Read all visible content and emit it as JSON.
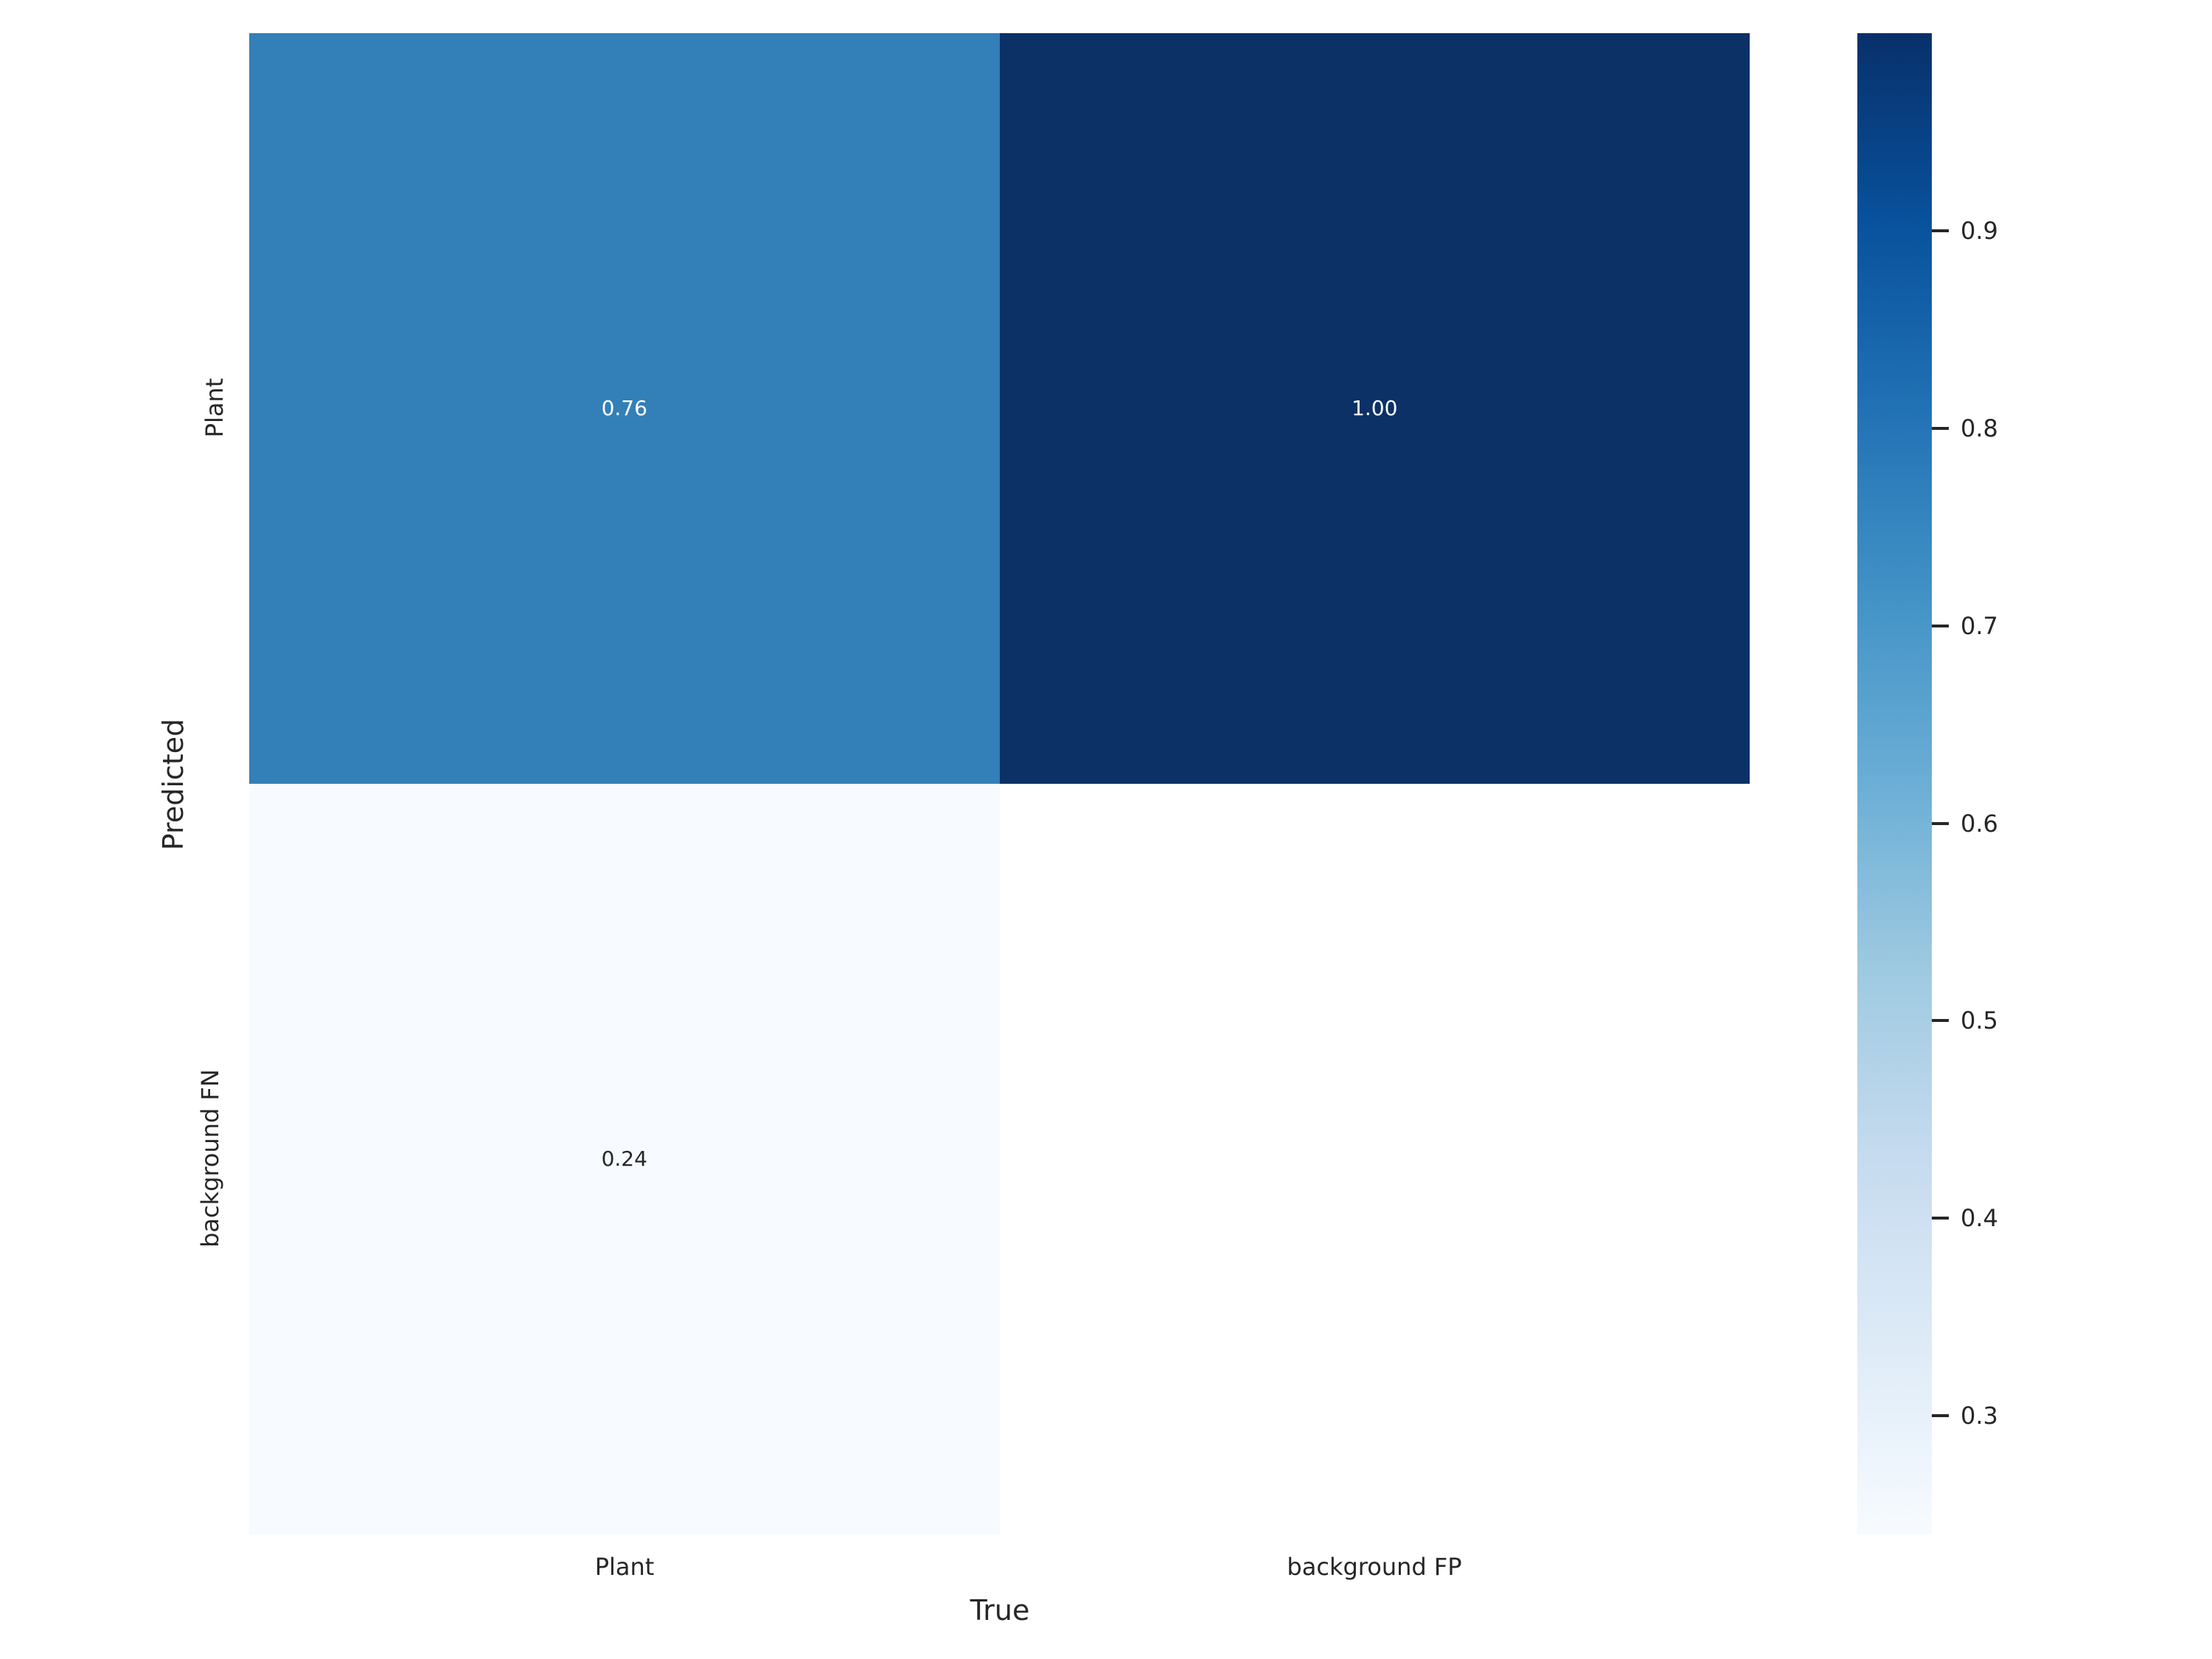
{
  "figure": {
    "background_color": "#ffffff",
    "text_color": "#262626"
  },
  "chart_data": {
    "type": "heatmap",
    "title": "",
    "xlabel": "True",
    "ylabel": "Predicted",
    "x_categories": [
      "Plant",
      "background FP"
    ],
    "y_categories": [
      "Plant",
      "background FN"
    ],
    "values": [
      [
        0.76,
        1.0
      ],
      [
        0.24,
        null
      ]
    ],
    "annotations": [
      [
        "0.76",
        "1.00"
      ],
      [
        "0.24",
        ""
      ]
    ],
    "cell_colors": [
      [
        "#337fb8",
        "#0b3166"
      ],
      [
        "#f7fafe",
        "#ffffff"
      ]
    ],
    "annotation_colors": [
      [
        "#ffffff",
        "#ffffff"
      ],
      [
        "#262626",
        "#262626"
      ]
    ],
    "colormap": "Blues",
    "vmin": 0.24,
    "vmax": 1.0,
    "grid": false,
    "legend_position": "right-colorbar",
    "colorbar": {
      "ticks": [
        0.9,
        0.8,
        0.7,
        0.6,
        0.5,
        0.4,
        0.3
      ],
      "tick_labels": [
        "0.9",
        "0.8",
        "0.7",
        "0.6",
        "0.5",
        "0.4",
        "0.3"
      ],
      "gradient_top_to_bottom": [
        "#08306b",
        "#08519c",
        "#2171b5",
        "#4292c6",
        "#6baed6",
        "#9ecae1",
        "#c6dbef",
        "#deebf7",
        "#f7fbff"
      ]
    }
  }
}
